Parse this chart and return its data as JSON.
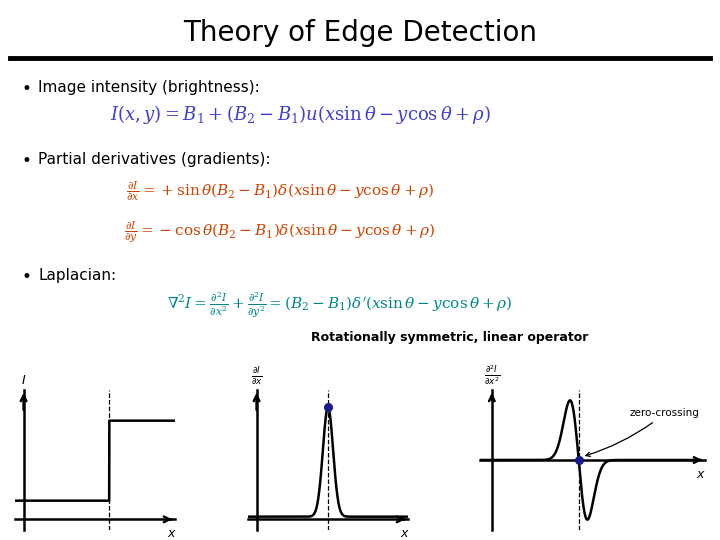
{
  "title": "Theory of Edge Detection",
  "title_fontsize": 20,
  "bg_color": "#ffffff",
  "bullet1": "Image intensity (brightness):",
  "bullet2": "Partial derivatives (gradients):",
  "bullet3": "Laplacian:",
  "eq1": "$I(x,y)= B_1+(B_2-B_1)u(x\\sin\\theta - y\\cos\\theta+\\rho)$",
  "eq2a": "$\\frac{\\partial I}{\\partial x}=+\\sin\\theta(B_2-B_1)\\delta(x\\sin\\theta-y\\cos\\theta+\\rho)$",
  "eq2b": "$\\frac{\\partial I}{\\partial y}=-\\cos\\theta(B_2-B_1)\\delta(x\\sin\\theta-y\\cos\\theta+\\rho)$",
  "eq3": "$\\nabla^2 I=\\frac{\\partial^2 I}{\\partial x^2}+\\frac{\\partial^2 I}{\\partial y^2}=(B_2-B_1)\\delta^{\\prime}(x\\sin\\theta-y\\cos\\theta+\\rho)$",
  "rotationally": "Rotationally symmetric, linear operator",
  "zero_crossing": "zero-crossing",
  "eq_color1": "#4040cc",
  "eq_color2": "#cc4400",
  "eq_color3": "#008888",
  "text_color": "#000000",
  "dot_color": "#1a1a8c",
  "title_font": "DejaVu Sans",
  "bullet_fontsize": 11,
  "eq1_fontsize": 13,
  "eq2_fontsize": 11,
  "eq3_fontsize": 11,
  "rot_fontsize": 9,
  "plot_lw": 1.8
}
